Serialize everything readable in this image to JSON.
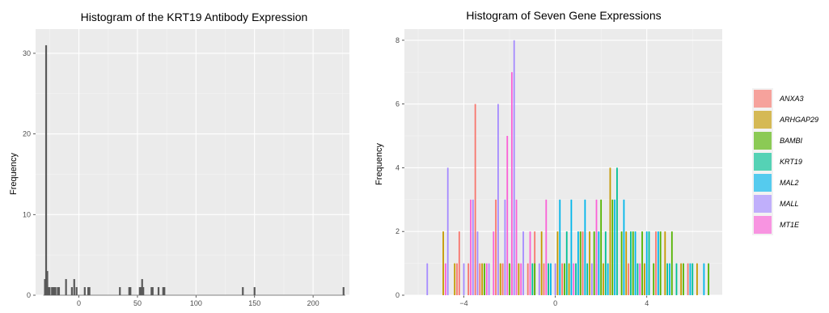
{
  "chart_data": [
    {
      "type": "bar",
      "title": "Histogram of the KRT19 Antibody Expression",
      "xlabel": "",
      "ylabel": "Frequency",
      "xlim": [
        -37,
        231
      ],
      "ylim": [
        0,
        33
      ],
      "x_ticks": [
        0,
        50,
        100,
        150,
        200
      ],
      "y_ticks": [
        0,
        10,
        20,
        30
      ],
      "grid": true,
      "bars": [
        {
          "x": -29,
          "value": 2
        },
        {
          "x": -28,
          "value": 31
        },
        {
          "x": -27,
          "value": 3
        },
        {
          "x": -26,
          "value": 1
        },
        {
          "x": -25,
          "value": 1
        },
        {
          "x": -23,
          "value": 1
        },
        {
          "x": -22,
          "value": 1
        },
        {
          "x": -21,
          "value": 1
        },
        {
          "x": -20,
          "value": 1
        },
        {
          "x": -18,
          "value": 1
        },
        {
          "x": -17,
          "value": 1
        },
        {
          "x": -11,
          "value": 2
        },
        {
          "x": -6,
          "value": 1
        },
        {
          "x": -4,
          "value": 2
        },
        {
          "x": -2,
          "value": 1
        },
        {
          "x": 5,
          "value": 1
        },
        {
          "x": 8,
          "value": 1
        },
        {
          "x": 9,
          "value": 1
        },
        {
          "x": 35,
          "value": 1
        },
        {
          "x": 43,
          "value": 1
        },
        {
          "x": 44,
          "value": 1
        },
        {
          "x": 52,
          "value": 1
        },
        {
          "x": 53,
          "value": 1
        },
        {
          "x": 54,
          "value": 2
        },
        {
          "x": 55,
          "value": 1
        },
        {
          "x": 62,
          "value": 1
        },
        {
          "x": 63,
          "value": 1
        },
        {
          "x": 68,
          "value": 1
        },
        {
          "x": 72,
          "value": 1
        },
        {
          "x": 73,
          "value": 1
        },
        {
          "x": 140,
          "value": 1
        },
        {
          "x": 150,
          "value": 1
        },
        {
          "x": 226,
          "value": 1
        }
      ]
    },
    {
      "type": "bar",
      "title": "Histogram of Seven Gene Expressions",
      "xlabel": "",
      "ylabel": "Frequency",
      "xlim": [
        -6.6,
        7.3
      ],
      "ylim": [
        0,
        8.35
      ],
      "x_ticks": [
        -4,
        0,
        4
      ],
      "y_ticks": [
        0,
        2,
        4,
        6,
        8
      ],
      "grid": true,
      "legend_position": "right",
      "series": [
        {
          "name": "ANXA3",
          "color": "#F8766D",
          "bars": [
            {
              "x": -4.3,
              "value": 1
            },
            {
              "x": -4.2,
              "value": 2
            },
            {
              "x": -3.3,
              "value": 1
            },
            {
              "x": -3.8,
              "value": 1
            },
            {
              "x": -3.5,
              "value": 6
            },
            {
              "x": -2.3,
              "value": 1
            },
            {
              "x": -2.6,
              "value": 3
            },
            {
              "x": -1.9,
              "value": 1
            },
            {
              "x": -1.2,
              "value": 1
            },
            {
              "x": -0.9,
              "value": 2
            },
            {
              "x": -0.5,
              "value": 1
            },
            {
              "x": 0.3,
              "value": 1
            },
            {
              "x": 1.2,
              "value": 2
            },
            {
              "x": 1.8,
              "value": 1
            },
            {
              "x": 3.2,
              "value": 1
            },
            {
              "x": 4.4,
              "value": 2
            },
            {
              "x": 5.8,
              "value": 1
            }
          ]
        },
        {
          "name": "ARHGAP29",
          "color": "#C49A00",
          "bars": [
            {
              "x": -4.9,
              "value": 2
            },
            {
              "x": -4.4,
              "value": 1
            },
            {
              "x": -3.2,
              "value": 1
            },
            {
              "x": -2.4,
              "value": 1
            },
            {
              "x": -1.6,
              "value": 1
            },
            {
              "x": -0.6,
              "value": 2
            },
            {
              "x": 0.1,
              "value": 2
            },
            {
              "x": 0.6,
              "value": 1
            },
            {
              "x": 1.5,
              "value": 2
            },
            {
              "x": 2.1,
              "value": 1
            },
            {
              "x": 2.4,
              "value": 4
            },
            {
              "x": 3.1,
              "value": 2
            },
            {
              "x": 3.9,
              "value": 1
            },
            {
              "x": 4.8,
              "value": 2
            },
            {
              "x": 5.5,
              "value": 1
            },
            {
              "x": 6.2,
              "value": 1
            }
          ]
        },
        {
          "name": "BAMBI",
          "color": "#53B400",
          "bars": [
            {
              "x": -3.1,
              "value": 1
            },
            {
              "x": -2.0,
              "value": 1
            },
            {
              "x": -0.9,
              "value": 1
            },
            {
              "x": 0.4,
              "value": 1
            },
            {
              "x": 1.1,
              "value": 2
            },
            {
              "x": 1.7,
              "value": 2
            },
            {
              "x": 2.0,
              "value": 3
            },
            {
              "x": 2.5,
              "value": 3
            },
            {
              "x": 2.9,
              "value": 2
            },
            {
              "x": 3.4,
              "value": 2
            },
            {
              "x": 3.8,
              "value": 2
            },
            {
              "x": 4.3,
              "value": 1
            },
            {
              "x": 4.6,
              "value": 2
            },
            {
              "x": 5.1,
              "value": 2
            },
            {
              "x": 5.6,
              "value": 1
            },
            {
              "x": 6.7,
              "value": 1
            }
          ]
        },
        {
          "name": "KRT19",
          "color": "#00C094",
          "bars": [
            {
              "x": -1.0,
              "value": 1
            },
            {
              "x": -0.3,
              "value": 1
            },
            {
              "x": 0.5,
              "value": 2
            },
            {
              "x": 0.9,
              "value": 1
            },
            {
              "x": 1.4,
              "value": 1
            },
            {
              "x": 2.2,
              "value": 2
            },
            {
              "x": 2.7,
              "value": 4
            },
            {
              "x": 3.3,
              "value": 2
            },
            {
              "x": 3.6,
              "value": 1
            },
            {
              "x": 4.1,
              "value": 2
            },
            {
              "x": 4.9,
              "value": 1
            },
            {
              "x": 5.3,
              "value": 1
            },
            {
              "x": 6.0,
              "value": 1
            }
          ]
        },
        {
          "name": "MAL2",
          "color": "#00B6EB",
          "bars": [
            {
              "x": -0.2,
              "value": 1
            },
            {
              "x": 0.2,
              "value": 3
            },
            {
              "x": 0.7,
              "value": 3
            },
            {
              "x": 1.0,
              "value": 2
            },
            {
              "x": 1.3,
              "value": 3
            },
            {
              "x": 1.9,
              "value": 2
            },
            {
              "x": 2.3,
              "value": 1
            },
            {
              "x": 2.6,
              "value": 3
            },
            {
              "x": 3.0,
              "value": 3
            },
            {
              "x": 3.5,
              "value": 2
            },
            {
              "x": 4.0,
              "value": 2
            },
            {
              "x": 4.5,
              "value": 2
            },
            {
              "x": 5.0,
              "value": 1
            },
            {
              "x": 5.9,
              "value": 1
            },
            {
              "x": 6.5,
              "value": 1
            }
          ]
        },
        {
          "name": "MALL",
          "color": "#A58AFF",
          "bars": [
            {
              "x": -5.6,
              "value": 1
            },
            {
              "x": -4.7,
              "value": 4
            },
            {
              "x": -4.0,
              "value": 1
            },
            {
              "x": -3.6,
              "value": 3
            },
            {
              "x": -3.4,
              "value": 2
            },
            {
              "x": -2.9,
              "value": 1
            },
            {
              "x": -2.5,
              "value": 6
            },
            {
              "x": -2.2,
              "value": 3
            },
            {
              "x": -1.8,
              "value": 8
            },
            {
              "x": -1.4,
              "value": 2
            },
            {
              "x": -0.7,
              "value": 1
            },
            {
              "x": 0.0,
              "value": 1
            },
            {
              "x": 1.6,
              "value": 1
            }
          ]
        },
        {
          "name": "MT1E",
          "color": "#FB61D7",
          "bars": [
            {
              "x": -4.8,
              "value": 1
            },
            {
              "x": -3.7,
              "value": 3
            },
            {
              "x": -3.0,
              "value": 1
            },
            {
              "x": -2.7,
              "value": 2
            },
            {
              "x": -2.1,
              "value": 5
            },
            {
              "x": -1.9,
              "value": 7
            },
            {
              "x": -1.7,
              "value": 3
            },
            {
              "x": -1.5,
              "value": 1
            },
            {
              "x": -1.1,
              "value": 2
            },
            {
              "x": -0.4,
              "value": 3
            },
            {
              "x": 0.8,
              "value": 1
            },
            {
              "x": 1.8,
              "value": 3
            },
            {
              "x": 3.7,
              "value": 1
            }
          ]
        }
      ]
    }
  ]
}
